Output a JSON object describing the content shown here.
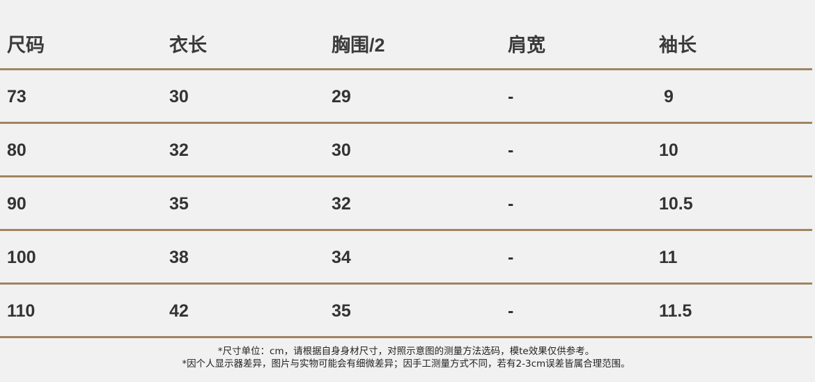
{
  "table": {
    "headers": [
      "尺码",
      "衣长",
      "胸围/2",
      "肩宽",
      "袖长"
    ],
    "rows": [
      [
        "73",
        "30",
        "29",
        "-",
        " 9"
      ],
      [
        "80",
        "32",
        "30",
        "-",
        "10"
      ],
      [
        "90",
        "35",
        "32",
        "-",
        "10.5"
      ],
      [
        "100",
        "38",
        "34",
        "-",
        "11"
      ],
      [
        "110",
        "42",
        "35",
        "-",
        "11.5"
      ]
    ]
  },
  "notes": [
    "*尺寸单位：cm，请根据自身身材尺寸，对照示意图的测量方法选码，模te效果仅供参考。",
    "*因个人显示器差异，图片与实物可能会有细微差异；因手工测量方式不同，若有2-3cm误差皆属合理范围。"
  ],
  "colors": {
    "background": "#f1f1f1",
    "divider": "#a08460",
    "text": "#333333"
  }
}
